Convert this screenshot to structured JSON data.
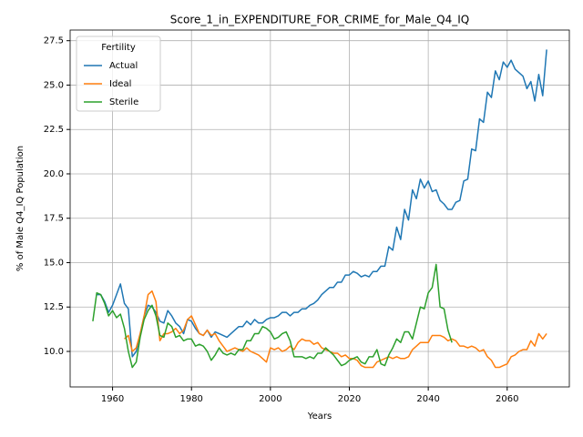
{
  "chart_data": {
    "type": "line",
    "title": "Score_1_in_EXPENDITURE_FOR_CRIME_for_Male_Q4_IQ",
    "x_label": "Years",
    "y_label": "% of Male Q4_IQ Population",
    "legend_title": "Fertility",
    "legend_position": "upper left",
    "grid": true,
    "x": [
      1955,
      1956,
      1957,
      1958,
      1959,
      1960,
      1961,
      1962,
      1963,
      1964,
      1965,
      1966,
      1967,
      1968,
      1969,
      1970,
      1971,
      1972,
      1973,
      1974,
      1975,
      1976,
      1977,
      1978,
      1979,
      1980,
      1981,
      1982,
      1983,
      1984,
      1985,
      1986,
      1987,
      1988,
      1989,
      1990,
      1991,
      1992,
      1993,
      1994,
      1995,
      1996,
      1997,
      1998,
      1999,
      2000,
      2001,
      2002,
      2003,
      2004,
      2005,
      2006,
      2007,
      2008,
      2009,
      2010,
      2011,
      2012,
      2013,
      2014,
      2015,
      2016,
      2017,
      2018,
      2019,
      2020,
      2021,
      2022,
      2023,
      2024,
      2025,
      2026,
      2027,
      2028,
      2029,
      2030,
      2031,
      2032,
      2033,
      2034,
      2035,
      2036,
      2037,
      2038,
      2039,
      2040,
      2041,
      2042,
      2043,
      2044,
      2045,
      2046,
      2047,
      2048,
      2049,
      2050,
      2051,
      2052,
      2053,
      2054,
      2055,
      2056,
      2057,
      2058,
      2059,
      2060,
      2061,
      2062,
      2063,
      2064,
      2065,
      2066,
      2067,
      2068,
      2069,
      2070
    ],
    "xlim": [
      1949.25,
      2075.75
    ],
    "xticks": [
      1960,
      1980,
      2000,
      2020,
      2040,
      2060
    ],
    "ylim": [
      8.0,
      28.1
    ],
    "yticks": [
      {
        "value": 10,
        "label": "10.0"
      },
      12.5,
      {
        "value": 15,
        "label": "15.0"
      },
      17.5,
      {
        "value": 20,
        "label": "20.0"
      },
      22.5,
      {
        "value": 25,
        "label": "25.0"
      },
      27.5
    ],
    "series": [
      {
        "name": "Actual",
        "color": "#1f77b4",
        "values": [
          null,
          13.2,
          13.2,
          12.8,
          12.2,
          12.6,
          13.2,
          13.8,
          12.7,
          12.4,
          9.7,
          10.0,
          11.0,
          12.0,
          12.6,
          12.5,
          12.2,
          11.7,
          11.6,
          12.3,
          12.0,
          11.6,
          11.4,
          11.0,
          11.8,
          11.7,
          11.3,
          11.0,
          10.9,
          11.2,
          10.8,
          11.1,
          11.0,
          10.9,
          10.8,
          11.0,
          11.2,
          11.4,
          11.4,
          11.7,
          11.5,
          11.8,
          11.6,
          11.6,
          11.8,
          11.9,
          11.9,
          12.0,
          12.2,
          12.2,
          12.0,
          12.2,
          12.2,
          12.4,
          12.4,
          12.6,
          12.7,
          12.9,
          13.2,
          13.4,
          13.6,
          13.6,
          13.9,
          13.9,
          14.3,
          14.3,
          14.5,
          14.4,
          14.2,
          14.3,
          14.2,
          14.5,
          14.5,
          14.8,
          14.8,
          15.9,
          15.7,
          17.0,
          16.3,
          18.0,
          17.4,
          19.1,
          18.6,
          19.7,
          19.2,
          19.6,
          19.0,
          19.1,
          18.5,
          18.3,
          18.0,
          18.0,
          18.4,
          18.5,
          19.6,
          19.7,
          21.4,
          21.3,
          23.1,
          22.9,
          24.6,
          24.3,
          25.8,
          25.3,
          26.3,
          26.0,
          26.4,
          25.9,
          25.7,
          25.5,
          24.8,
          25.2,
          24.1,
          25.6,
          24.4,
          27.0
        ]
      },
      {
        "name": "Ideal",
        "color": "#ff7f0e",
        "values": [
          null,
          null,
          null,
          null,
          null,
          null,
          null,
          null,
          10.7,
          10.9,
          10.0,
          10.2,
          11.0,
          12.0,
          13.2,
          13.4,
          12.8,
          10.6,
          11.0,
          11.0,
          11.1,
          11.3,
          11.0,
          11.2,
          11.8,
          12.0,
          11.5,
          11.0,
          10.9,
          11.2,
          10.9,
          11.0,
          10.6,
          10.3,
          10.0,
          10.1,
          10.2,
          10.1,
          10.0,
          10.2,
          10.0,
          9.9,
          9.8,
          9.6,
          9.4,
          10.2,
          10.1,
          10.2,
          10.0,
          10.1,
          10.3,
          10.1,
          10.5,
          10.7,
          10.6,
          10.6,
          10.4,
          10.5,
          10.2,
          10.1,
          10.0,
          9.9,
          9.9,
          9.7,
          9.8,
          9.6,
          9.6,
          9.5,
          9.2,
          9.1,
          9.1,
          9.1,
          9.4,
          9.5,
          9.6,
          9.7,
          9.6,
          9.7,
          9.6,
          9.6,
          9.7,
          10.1,
          10.3,
          10.5,
          10.5,
          10.5,
          10.9,
          10.9,
          10.9,
          10.8,
          10.6,
          10.7,
          10.6,
          10.3,
          10.3,
          10.2,
          10.3,
          10.2,
          10.0,
          10.1,
          9.7,
          9.5,
          9.1,
          9.1,
          9.2,
          9.3,
          9.7,
          9.8,
          10.0,
          10.1,
          10.1,
          10.6,
          10.3,
          11.0,
          10.7,
          11.0
        ]
      },
      {
        "name": "Sterile",
        "color": "#2ca02c",
        "values": [
          11.7,
          13.3,
          13.2,
          12.7,
          12.0,
          12.3,
          11.9,
          12.1,
          11.3,
          10.0,
          9.1,
          9.4,
          10.8,
          11.8,
          12.3,
          12.6,
          12.0,
          10.9,
          10.8,
          11.6,
          11.4,
          10.8,
          10.9,
          10.6,
          10.7,
          10.7,
          10.3,
          10.4,
          10.3,
          10.0,
          9.5,
          9.8,
          10.2,
          9.9,
          9.8,
          9.9,
          9.8,
          10.1,
          10.1,
          10.6,
          10.6,
          11.0,
          11.0,
          11.4,
          11.3,
          11.1,
          10.7,
          10.8,
          11.0,
          11.1,
          10.6,
          9.7,
          9.7,
          9.7,
          9.6,
          9.7,
          9.6,
          9.9,
          9.9,
          10.2,
          10.0,
          9.8,
          9.5,
          9.2,
          9.3,
          9.5,
          9.6,
          9.7,
          9.4,
          9.3,
          9.7,
          9.7,
          10.1,
          9.3,
          9.2,
          9.8,
          10.2,
          10.7,
          10.5,
          11.1,
          11.1,
          10.7,
          11.6,
          12.5,
          12.4,
          13.3,
          13.6,
          14.9,
          12.5,
          12.4,
          11.2,
          10.5,
          null,
          null,
          null,
          null,
          null,
          null,
          null,
          null,
          null,
          null,
          null,
          null,
          null,
          null,
          null,
          null,
          null,
          null,
          null,
          null,
          null,
          null,
          null,
          null
        ]
      }
    ]
  }
}
